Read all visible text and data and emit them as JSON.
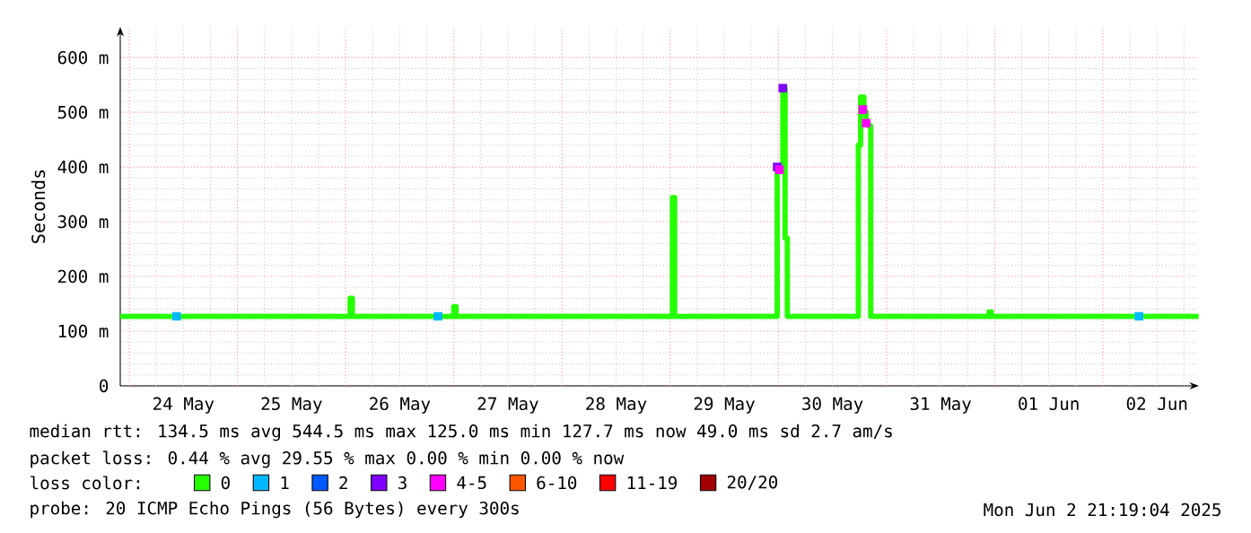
{
  "chart_data": {
    "type": "step",
    "ylabel": "Seconds",
    "xlim": [
      "2025-05-23T22:00",
      "2025-06-02T21:19"
    ],
    "xticks": [
      {
        "value": "2025-05-24T12:00",
        "label": "24 May"
      },
      {
        "value": "2025-05-25T12:00",
        "label": "25 May"
      },
      {
        "value": "2025-05-26T12:00",
        "label": "26 May"
      },
      {
        "value": "2025-05-27T12:00",
        "label": "27 May"
      },
      {
        "value": "2025-05-28T12:00",
        "label": "28 May"
      },
      {
        "value": "2025-05-29T12:00",
        "label": "29 May"
      },
      {
        "value": "2025-05-30T12:00",
        "label": "30 May"
      },
      {
        "value": "2025-05-31T12:00",
        "label": "31 May"
      },
      {
        "value": "2025-06-01T12:00",
        "label": "01 Jun"
      },
      {
        "value": "2025-06-02T12:00",
        "label": "02 Jun"
      }
    ],
    "ylim": [
      0,
      656
    ],
    "yticks": [
      0,
      {
        "value": 100,
        "label": "100 m"
      },
      {
        "value": 200,
        "label": "200 m"
      },
      {
        "value": 300,
        "label": "300 m"
      },
      {
        "value": 400,
        "label": "400 m"
      },
      {
        "value": 500,
        "label": "500 m"
      },
      {
        "value": 600,
        "label": "600 m"
      }
    ],
    "grid": true,
    "legend": "bottom",
    "legend_title": "loss color:",
    "series": [
      {
        "name": "0",
        "color": "#26ff00",
        "x": [
          "2025-05-23T22:00",
          "2025-05-26T00:45",
          "2025-05-26T01:00",
          "2025-05-26T01:30",
          "2025-05-26T23:45",
          "2025-05-27T00:00",
          "2025-05-27T00:30",
          "2025-05-29T00:15",
          "2025-05-29T00:30",
          "2025-05-29T01:00",
          "2025-05-29T23:30",
          "2025-05-29T23:45",
          "2025-05-30T00:15",
          "2025-05-30T01:00",
          "2025-05-30T01:30",
          "2025-05-30T02:00",
          "2025-05-30T17:30",
          "2025-05-30T17:45",
          "2025-05-30T18:15",
          "2025-05-30T19:00",
          "2025-05-30T19:30",
          "2025-05-30T20:00",
          "2025-05-30T20:30",
          "2025-05-31T22:30",
          "2025-05-31T22:45",
          "2025-05-31T23:15",
          "2025-06-02T21:15"
        ],
        "values": [
          127,
          127,
          160,
          127,
          127,
          145,
          127,
          127,
          344,
          127,
          127,
          400,
          395,
          544,
          270,
          127,
          127,
          440,
          528,
          500,
          480,
          475,
          127,
          127,
          135,
          127,
          127
        ]
      },
      {
        "name": "1",
        "color": "#00b8ff",
        "type": "scatter",
        "marker": "square",
        "x": [
          "2025-05-24T10:30",
          "2025-05-26T20:30",
          "2025-06-02T08:00"
        ],
        "values": [
          127,
          127,
          127
        ]
      },
      {
        "name": "2",
        "color": "#0059ff",
        "type": "scatter"
      },
      {
        "name": "3",
        "color": "#8000ff",
        "type": "scatter",
        "marker": "square",
        "x": [
          "2025-05-29T23:45",
          "2025-05-30T01:00"
        ],
        "values": [
          400,
          544
        ]
      },
      {
        "name": "4-5",
        "color": "#ff00ff",
        "type": "scatter",
        "marker": "square",
        "x": [
          "2025-05-30T00:15",
          "2025-05-30T18:45",
          "2025-05-30T19:30"
        ],
        "values": [
          395,
          505,
          480
        ]
      },
      {
        "name": "6-10",
        "color": "#ff5500",
        "type": "scatter"
      },
      {
        "name": "11-19",
        "color": "#ff0000",
        "type": "scatter"
      },
      {
        "name": "20/20",
        "color": "#a10000",
        "type": "scatter"
      }
    ],
    "annotations": [
      "median rtt:  134.5 ms avg  544.5 ms max  125.0 ms min  127.7 ms now  49.0 ms sd  2.7   am/s",
      "packet loss: 0.44 % avg  29.55 % max  0.00 % min  0.00 % now",
      "probe:       20 ICMP Echo Pings (56 Bytes) every 300s",
      "Mon Jun  2 21:19:04 2025"
    ]
  }
}
